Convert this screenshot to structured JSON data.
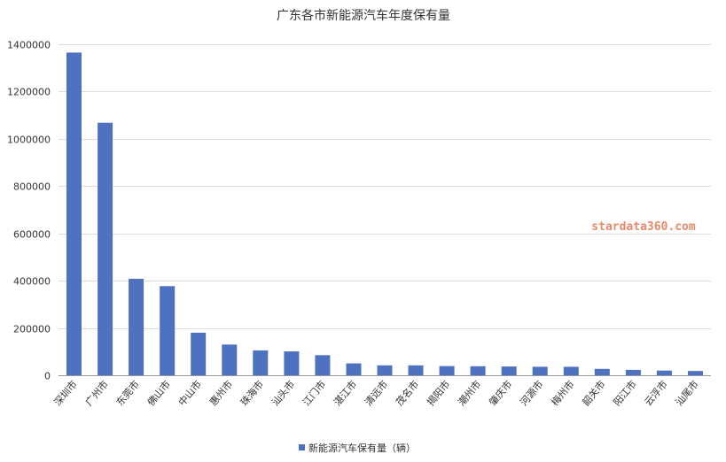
{
  "chart_data": {
    "type": "bar",
    "title": "广东各市新能源汽车年度保有量",
    "categories": [
      "深圳市",
      "广州市",
      "东莞市",
      "佛山市",
      "中山市",
      "惠州市",
      "珠海市",
      "汕头市",
      "江门市",
      "湛江市",
      "清远市",
      "茂名市",
      "揭阳市",
      "潮州市",
      "肇庆市",
      "河源市",
      "梅州市",
      "韶关市",
      "阳江市",
      "云浮市",
      "汕尾市"
    ],
    "series": [
      {
        "name": "新能源汽车保有量（辆）",
        "color": "#4e72c0",
        "values": [
          1365000,
          1068000,
          408000,
          377000,
          180000,
          130000,
          105000,
          101000,
          85000,
          50000,
          42000,
          42000,
          39000,
          38000,
          37000,
          36000,
          36000,
          27000,
          23000,
          20000,
          18000
        ]
      }
    ],
    "ylim": [
      0,
      1400000
    ],
    "yticks": [
      "0",
      "200000",
      "400000",
      "600000",
      "800000",
      "1000000",
      "1200000",
      "1400000"
    ],
    "grid": true,
    "legend_position": "bottom"
  },
  "watermark": "stardata360.com"
}
